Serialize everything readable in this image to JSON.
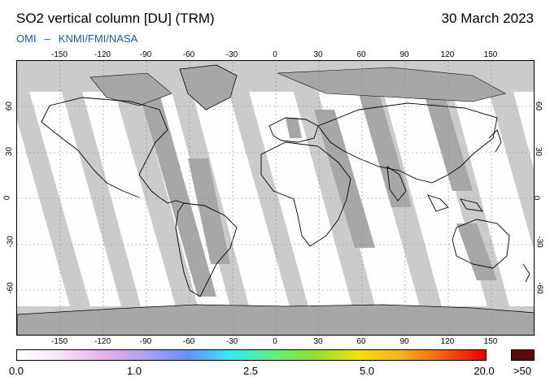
{
  "header": {
    "title": "SO2 vertical column [DU] (TRM)",
    "date": "30 March 2023",
    "credit_left": "OMI",
    "credit_sep": "–",
    "credit_right": "KNMI/FMI/NASA"
  },
  "map": {
    "lon_ticks": [
      "-150",
      "-120",
      "-90",
      "-60",
      "-30",
      "0",
      "30",
      "60",
      "90",
      "120",
      "150"
    ],
    "lat_ticks": [
      "60",
      "30",
      "0",
      "-30",
      "-60"
    ],
    "colors": {
      "no_data": "#cbcbcb",
      "land_mask": "#a7a7a7",
      "background": "#fefefe",
      "coastline": "#000000"
    }
  },
  "colorbar": {
    "labels": [
      "0.0",
      "1.0",
      "2.5",
      "5.0",
      "20.0"
    ],
    "over_label": ">50",
    "over_color": "#5a0a0a",
    "gradient_colors": [
      "#ffffff",
      "#f6e6f6",
      "#e8b0e8",
      "#b0a0f0",
      "#6a8cff",
      "#38e8f8",
      "#60f080",
      "#90e030",
      "#f0e010",
      "#f8b020",
      "#f06010",
      "#e80000"
    ]
  }
}
